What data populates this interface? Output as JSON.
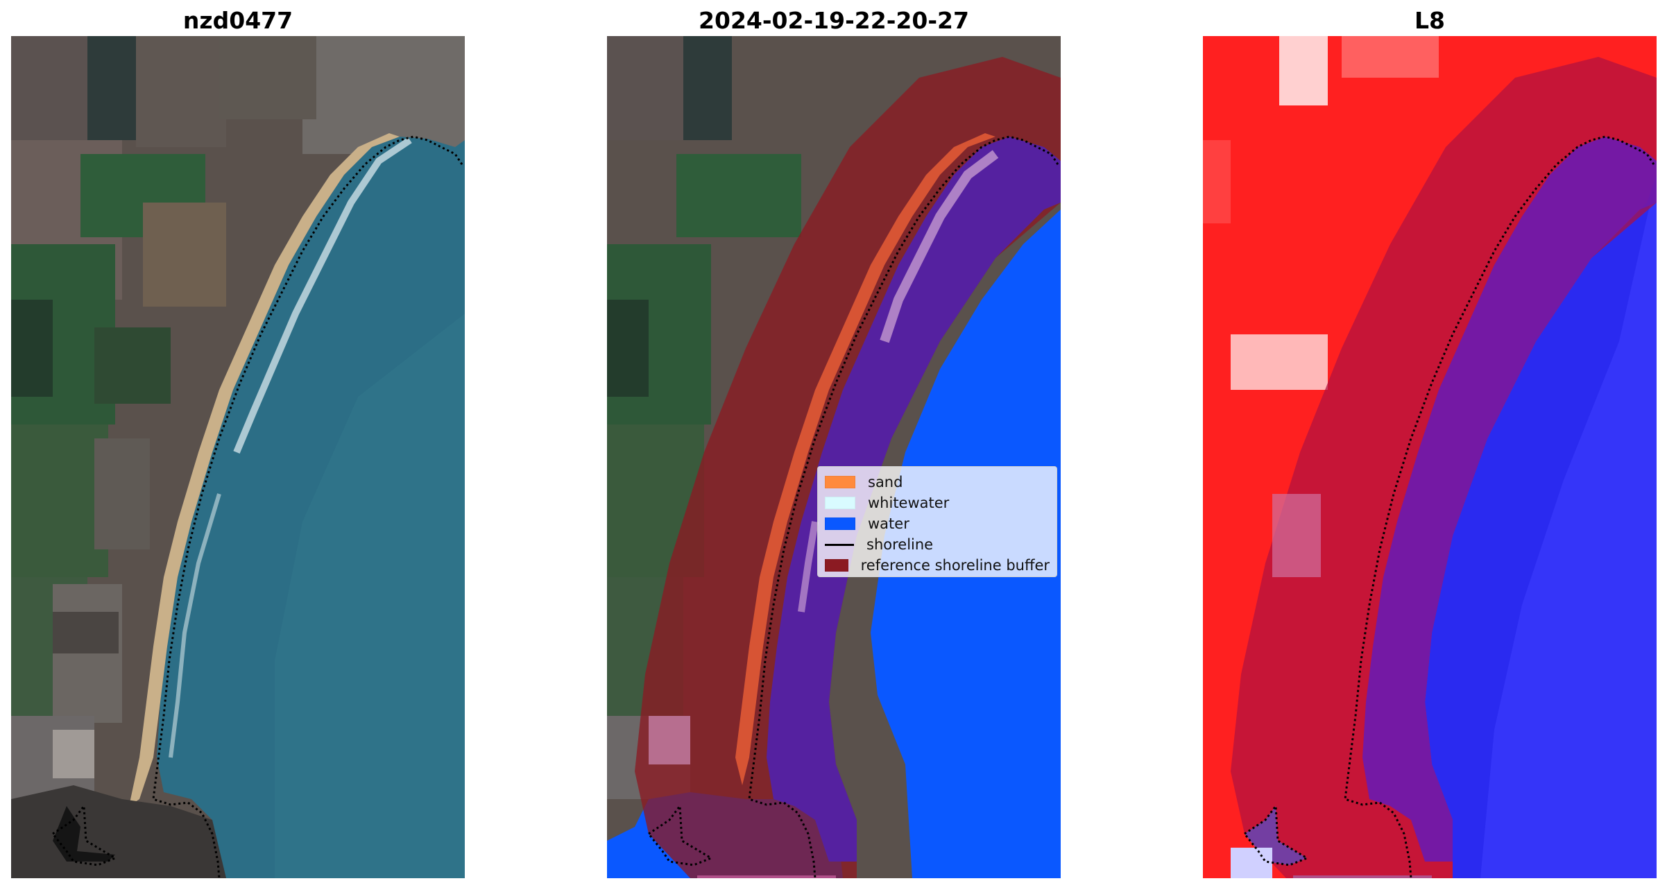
{
  "panels": [
    {
      "title": "nzd0477"
    },
    {
      "title": "2024-02-19-22-20-27"
    },
    {
      "title": "L8"
    }
  ],
  "legend": {
    "items": [
      {
        "label": "sand",
        "color": "#ff8a3d",
        "kind": "patch"
      },
      {
        "label": "whitewater",
        "color": "#d9fbff",
        "kind": "patch"
      },
      {
        "label": "water",
        "color": "#0a58ff",
        "kind": "patch"
      },
      {
        "label": "shoreline",
        "color": "#000000",
        "kind": "line"
      },
      {
        "label": "reference shoreline buffer",
        "color": "#8b1a22",
        "kind": "patch"
      }
    ]
  },
  "colors": {
    "land": "#4c4a48",
    "field_green": "#2f5d3a",
    "ocean": "#2c6e86",
    "beach": "#c9b089",
    "water_class": "#0a58ff",
    "buffer": "#8b1a22",
    "sand_class": "#e05a35",
    "ndwi_land": "#ff2020",
    "ndwi_water": "#2a2af0"
  }
}
